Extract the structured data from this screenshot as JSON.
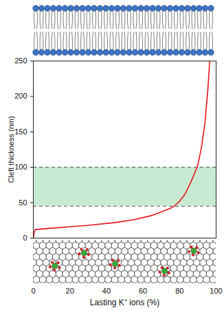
{
  "chart_data": {
    "type": "line",
    "x_label": "Lasting K⁺ ions (%)",
    "y_label": "Cleft thickness (nm)",
    "x": [
      0,
      0.5,
      1,
      10,
      20,
      30,
      45,
      55,
      65,
      70,
      75,
      77,
      80,
      83,
      86,
      88,
      90,
      92,
      94,
      95.5,
      96.5
    ],
    "values": [
      0,
      8,
      12,
      14,
      16,
      18,
      22,
      26,
      32,
      37,
      42,
      45,
      52,
      62,
      78,
      90,
      103,
      128,
      165,
      210,
      250
    ],
    "color": "#e8141c",
    "xlim": [
      0,
      100
    ],
    "xticks": [
      0,
      20,
      40,
      60,
      80,
      100
    ],
    "ylim": [
      0,
      250
    ],
    "yticks": [
      0,
      50,
      100,
      150,
      200,
      250
    ],
    "shaded_band": [
      45,
      100
    ]
  }
}
